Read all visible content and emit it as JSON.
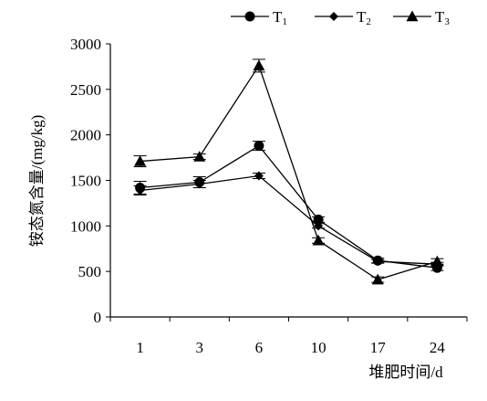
{
  "chart_data": {
    "type": "line",
    "title": "",
    "xlabel": "堆肥时间/d",
    "ylabel": "铵态氮含量/(mg/kg)",
    "categories": [
      "1",
      "3",
      "6",
      "10",
      "17",
      "24"
    ],
    "ylim": [
      0,
      3000
    ],
    "yticks": [
      "0",
      "500",
      "1000",
      "1500",
      "2000",
      "2500",
      "3000"
    ],
    "grid": false,
    "legend_position": "top",
    "series": [
      {
        "name": "T",
        "subscript": "1",
        "marker": "circle",
        "values": [
          1420,
          1480,
          1880,
          1070,
          620,
          540
        ],
        "errors": [
          70,
          60,
          50,
          30,
          25,
          30
        ]
      },
      {
        "name": "T",
        "subscript": "2",
        "marker": "diamond",
        "values": [
          1390,
          1460,
          1550,
          1000,
          610,
          580
        ],
        "errors": [
          50,
          40,
          30,
          25,
          20,
          20
        ]
      },
      {
        "name": "T",
        "subscript": "3",
        "marker": "triangle",
        "values": [
          1710,
          1760,
          2760,
          840,
          410,
          610
        ],
        "errors": [
          60,
          30,
          70,
          30,
          30,
          30
        ]
      }
    ],
    "colors": {
      "line": "#000000",
      "axis": "#000000"
    }
  }
}
